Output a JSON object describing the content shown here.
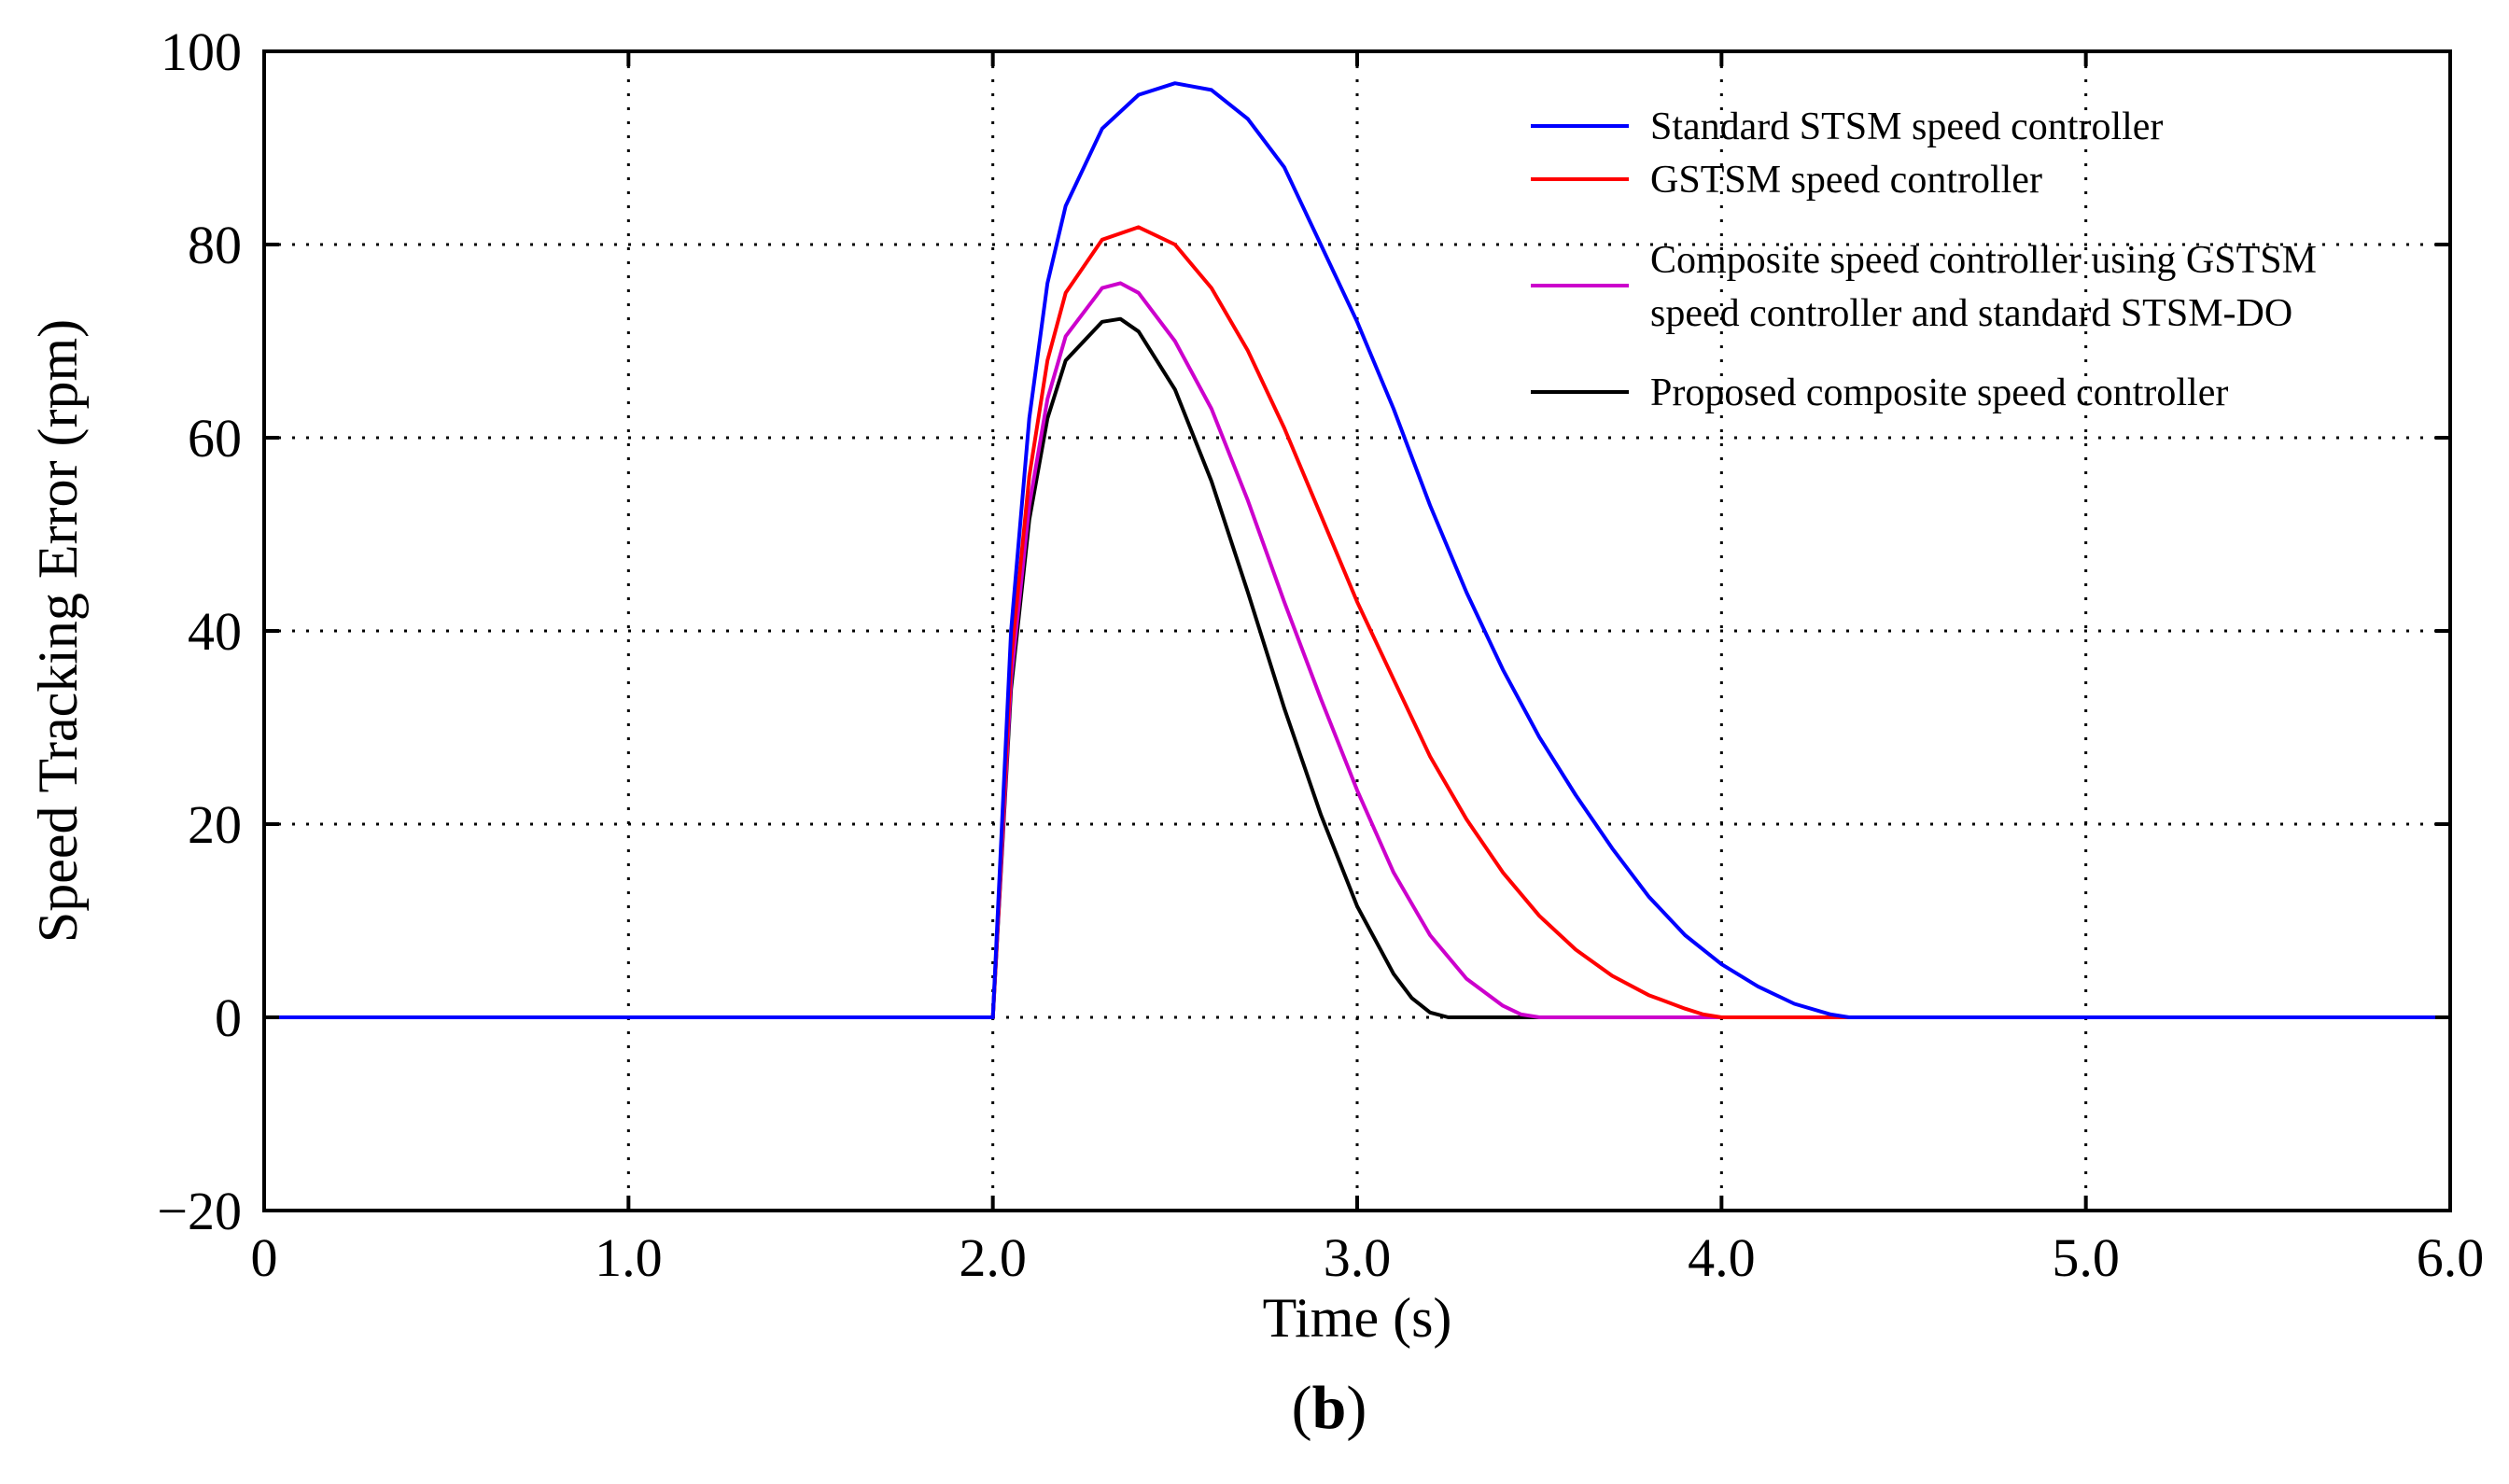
{
  "chart_data": {
    "type": "line",
    "title": "",
    "xlabel": "Time (s)",
    "ylabel": "Speed Tracking Error (rpm)",
    "xlim": [
      0,
      6
    ],
    "ylim": [
      -20,
      100
    ],
    "xticks": [
      0,
      1,
      2,
      3,
      4,
      5,
      6
    ],
    "xtick_labels": [
      "0",
      "1.0",
      "2.0",
      "3.0",
      "4.0",
      "5.0",
      "6.0"
    ],
    "yticks": [
      -20,
      0,
      20,
      40,
      60,
      80,
      100
    ],
    "ytick_labels": [
      "−20",
      "0",
      "20",
      "40",
      "60",
      "80",
      "100"
    ],
    "grid": true,
    "legend_position": "top-right",
    "panel_label": "b",
    "series": [
      {
        "name": "Standard STSM speed controller",
        "color": "#0000ff",
        "x": [
          0,
          2.0,
          2.05,
          2.1,
          2.15,
          2.2,
          2.3,
          2.4,
          2.5,
          2.6,
          2.7,
          2.8,
          2.9,
          3.0,
          3.1,
          3.2,
          3.3,
          3.4,
          3.5,
          3.6,
          3.7,
          3.8,
          3.9,
          4.0,
          4.1,
          4.2,
          4.3,
          4.35,
          6.0
        ],
        "y": [
          0,
          0,
          40,
          62,
          76,
          84,
          92,
          95.5,
          96.7,
          96,
          93,
          88,
          80,
          72,
          63,
          53,
          44,
          36,
          29,
          23,
          17.5,
          12.5,
          8.5,
          5.5,
          3.2,
          1.4,
          0.3,
          0,
          0
        ]
      },
      {
        "name": "GSTSM speed controller",
        "color": "#ff0000",
        "x": [
          0,
          2.0,
          2.05,
          2.1,
          2.15,
          2.2,
          2.3,
          2.4,
          2.5,
          2.6,
          2.7,
          2.8,
          2.9,
          3.0,
          3.1,
          3.2,
          3.3,
          3.4,
          3.5,
          3.6,
          3.7,
          3.8,
          3.9,
          3.95,
          4.0,
          6.0
        ],
        "y": [
          0,
          0,
          37,
          56,
          68,
          75,
          80.5,
          81.8,
          80,
          75.5,
          69,
          61,
          52,
          43,
          35,
          27,
          20.5,
          15,
          10.5,
          7,
          4.3,
          2.3,
          0.9,
          0.3,
          0,
          0
        ]
      },
      {
        "name": "Composite speed controller using GSTSM speed controller and standard STSM-DO",
        "color": "#cc00cc",
        "x": [
          0,
          2.0,
          2.05,
          2.1,
          2.15,
          2.2,
          2.3,
          2.35,
          2.4,
          2.5,
          2.6,
          2.7,
          2.8,
          2.9,
          3.0,
          3.1,
          3.2,
          3.3,
          3.4,
          3.45,
          3.5,
          6.0
        ],
        "y": [
          0,
          0,
          35,
          53,
          64,
          70.5,
          75.5,
          76,
          75,
          70,
          63,
          53.5,
          43,
          33,
          23.5,
          15,
          8.5,
          4,
          1.2,
          0.3,
          0,
          0
        ]
      },
      {
        "name": "Proposed composite speed controller",
        "color": "#000000",
        "x": [
          0,
          2.0,
          2.05,
          2.1,
          2.15,
          2.2,
          2.3,
          2.35,
          2.4,
          2.5,
          2.6,
          2.7,
          2.8,
          2.9,
          3.0,
          3.1,
          3.15,
          3.2,
          3.25,
          6.0
        ],
        "y": [
          0,
          0,
          34,
          51.5,
          62,
          68,
          72,
          72.3,
          71,
          65,
          55.5,
          44,
          32,
          21,
          11.5,
          4.5,
          2,
          0.5,
          0,
          0
        ]
      }
    ]
  }
}
